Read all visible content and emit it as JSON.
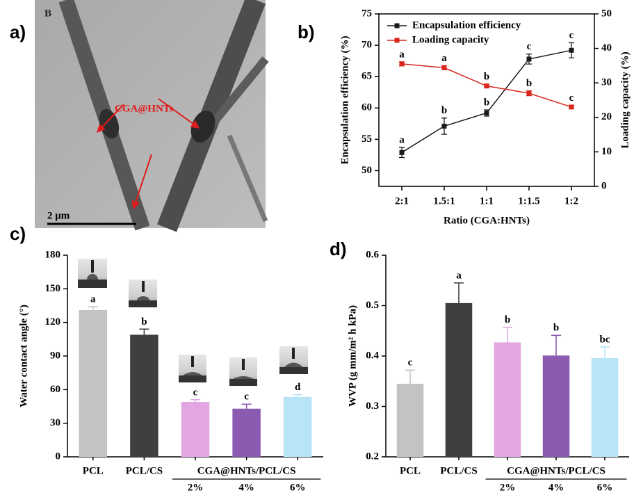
{
  "panel_a": {
    "label": "a)",
    "panel_letter": "B",
    "annotation": "CGA@HNTs",
    "scale_bar": "2 μm"
  },
  "chart_data": [
    {
      "type": "line",
      "panel_label": "b)",
      "x_label": "Ratio (CGA:HNTs)",
      "y_label": "Encapsulation efficiency (%)",
      "y2_label": "Loading capacity (%)",
      "categories": [
        "2:1",
        "1.5:1",
        "1:1",
        "1:1.5",
        "1:2"
      ],
      "ylim": [
        47.5,
        75
      ],
      "yticks": [
        50,
        55,
        60,
        65,
        70,
        75
      ],
      "y2lim": [
        0,
        50
      ],
      "y2ticks": [
        0,
        10,
        20,
        30,
        40,
        50
      ],
      "legend": "upper left",
      "series": [
        {
          "name": "Encapsulation efficiency",
          "color": "#1a1a1a",
          "values": [
            52.9,
            57.1,
            59.2,
            67.8,
            69.2
          ],
          "errors": [
            0.8,
            1.3,
            0.5,
            0.8,
            1.2
          ],
          "letters": [
            "a",
            "b",
            "b",
            "c",
            "c"
          ]
        },
        {
          "name": "Loading capacity",
          "color": "#d9261c",
          "axis": "y2",
          "values": [
            35.5,
            34.4,
            29.1,
            27.0,
            23.0
          ],
          "errors": [
            0.6,
            0.6,
            0.5,
            0.7,
            0.5
          ],
          "letters": [
            "a",
            "a",
            "b",
            "b",
            "c"
          ]
        }
      ]
    },
    {
      "type": "bar",
      "panel_label": "c)",
      "y_label": "Water contact angle (°)",
      "group_label": "CGA@HNTs/PCL/CS",
      "categories": [
        "PCL",
        "PCL/CS",
        "2%",
        "4%",
        "6%"
      ],
      "values": [
        131,
        109,
        49,
        43,
        53.5
      ],
      "errors": [
        3,
        5,
        2,
        4,
        2
      ],
      "letters": [
        "a",
        "b",
        "c",
        "c",
        "d"
      ],
      "colors": [
        "#c3c3c3",
        "#3f3f3f",
        "#e2a6e2",
        "#8a5bb0",
        "#b8e4f8"
      ],
      "ylim": [
        0,
        180
      ],
      "yticks": [
        0,
        30,
        60,
        90,
        120,
        150,
        180
      ]
    },
    {
      "type": "bar",
      "panel_label": "d)",
      "y_label": "WVP (g mm/m² h kPa)",
      "group_label": "CGA@HNTs/PCL/CS",
      "categories": [
        "PCL",
        "PCL/CS",
        "2%",
        "4%",
        "6%"
      ],
      "values": [
        0.345,
        0.505,
        0.427,
        0.401,
        0.396
      ],
      "errors": [
        0.027,
        0.04,
        0.03,
        0.04,
        0.022
      ],
      "letters": [
        "c",
        "a",
        "b",
        "b",
        "bc"
      ],
      "colors": [
        "#c3c3c3",
        "#3f3f3f",
        "#e2a6e2",
        "#8a5bb0",
        "#b8e4f8"
      ],
      "ylim": [
        0.2,
        0.6
      ],
      "yticks": [
        0.2,
        0.3,
        0.4,
        0.5,
        0.6
      ]
    }
  ]
}
